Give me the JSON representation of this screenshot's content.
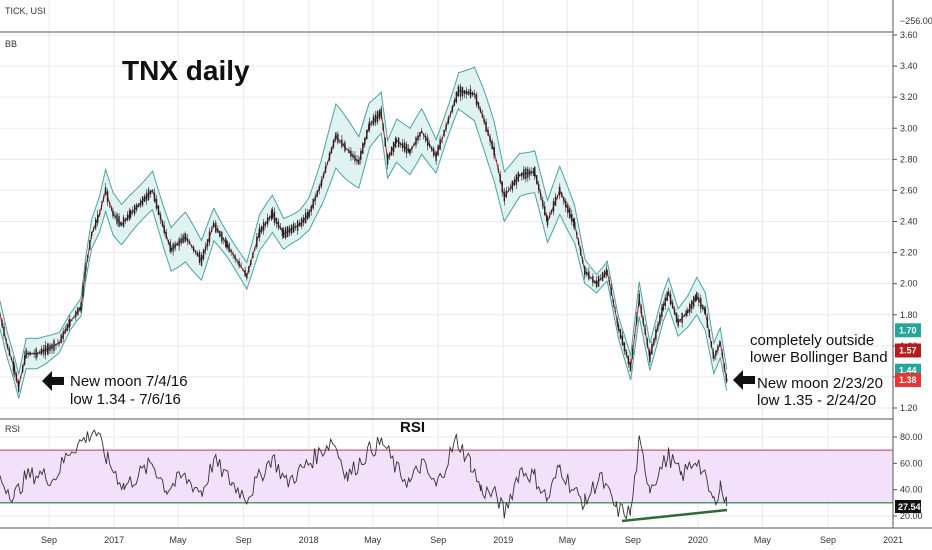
{
  "top_pane": {
    "symbol": "TICK, USI",
    "scale_label": "−256.00"
  },
  "price_pane": {
    "indicator_label": "BB",
    "title": "TNX daily",
    "annotations": {
      "left_line1": "New moon 7/4/16",
      "left_line2": "low 1.34 - 7/6/16",
      "right_line1": "New moon 2/23/20",
      "right_line2": "low 1.35 - 2/24/20",
      "band_line1": "completely outside",
      "band_line2": "lower Bollinger Band"
    },
    "badges": [
      {
        "value": "1.70",
        "color": "#26a69a"
      },
      {
        "value": "1.57",
        "color": "#b71c1c"
      },
      {
        "value": "1.44",
        "color": "#26a69a"
      },
      {
        "value": "1.38",
        "color": "#e53935"
      }
    ]
  },
  "rsi_pane": {
    "indicator_label": "RSI",
    "title": "RSI",
    "badge": "27.54"
  },
  "colors": {
    "band": "#4aa3a3",
    "band_fill": "#e0f2f1",
    "basis": "#c62828",
    "candle": "#222222",
    "rsi_fill": "#f3e0fb",
    "rsi_upper": "#c0395a",
    "rsi_lower": "#1f7a3a",
    "grid": "#eaeaea",
    "divergence": "#2f6b3a"
  },
  "chart_data": [
    {
      "type": "line",
      "title": "TNX daily",
      "series": [
        {
          "points": [
            [
              "2016-06-01",
              1.8
            ],
            [
              "2016-06-15",
              1.6
            ],
            [
              "2016-06-28",
              1.45
            ],
            [
              "2016-07-06",
              1.34
            ],
            [
              "2016-07-20",
              1.55
            ],
            [
              "2016-08-10",
              1.55
            ],
            [
              "2016-08-30",
              1.58
            ],
            [
              "2016-09-20",
              1.62
            ],
            [
              "2016-10-10",
              1.75
            ],
            [
              "2016-10-31",
              1.85
            ],
            [
              "2016-11-09",
              2.1
            ],
            [
              "2016-11-20",
              2.32
            ],
            [
              "2016-12-05",
              2.45
            ],
            [
              "2016-12-16",
              2.6
            ],
            [
              "2016-12-30",
              2.45
            ],
            [
              "2017-01-15",
              2.38
            ],
            [
              "2017-02-01",
              2.45
            ],
            [
              "2017-03-14",
              2.6
            ],
            [
              "2017-04-05",
              2.35
            ],
            [
              "2017-04-18",
              2.22
            ],
            [
              "2017-05-15",
              2.3
            ],
            [
              "2017-06-14",
              2.15
            ],
            [
              "2017-07-07",
              2.38
            ],
            [
              "2017-08-01",
              2.25
            ],
            [
              "2017-09-07",
              2.05
            ],
            [
              "2017-10-01",
              2.33
            ],
            [
              "2017-10-25",
              2.45
            ],
            [
              "2017-11-15",
              2.32
            ],
            [
              "2017-12-15",
              2.38
            ],
            [
              "2018-01-02",
              2.45
            ],
            [
              "2018-01-25",
              2.65
            ],
            [
              "2018-02-21",
              2.95
            ],
            [
              "2018-03-10",
              2.88
            ],
            [
              "2018-04-05",
              2.78
            ],
            [
              "2018-04-25",
              3.02
            ],
            [
              "2018-05-17",
              3.1
            ],
            [
              "2018-05-29",
              2.8
            ],
            [
              "2018-06-15",
              2.92
            ],
            [
              "2018-07-10",
              2.85
            ],
            [
              "2018-08-01",
              2.98
            ],
            [
              "2018-08-28",
              2.82
            ],
            [
              "2018-09-20",
              3.05
            ],
            [
              "2018-10-09",
              3.24
            ],
            [
              "2018-11-08",
              3.22
            ],
            [
              "2018-11-26",
              3.05
            ],
            [
              "2018-12-15",
              2.85
            ],
            [
              "2019-01-03",
              2.56
            ],
            [
              "2019-02-01",
              2.7
            ],
            [
              "2019-03-01",
              2.72
            ],
            [
              "2019-03-25",
              2.4
            ],
            [
              "2019-04-17",
              2.6
            ],
            [
              "2019-05-15",
              2.38
            ],
            [
              "2019-06-03",
              2.08
            ],
            [
              "2019-06-25",
              2.0
            ],
            [
              "2019-07-15",
              2.08
            ],
            [
              "2019-08-05",
              1.72
            ],
            [
              "2019-08-28",
              1.46
            ],
            [
              "2019-09-13",
              1.9
            ],
            [
              "2019-10-03",
              1.53
            ],
            [
              "2019-10-28",
              1.85
            ],
            [
              "2019-11-07",
              1.94
            ],
            [
              "2019-11-25",
              1.75
            ],
            [
              "2019-12-13",
              1.82
            ],
            [
              "2019-12-30",
              1.92
            ],
            [
              "2020-01-15",
              1.82
            ],
            [
              "2020-01-31",
              1.52
            ],
            [
              "2020-02-12",
              1.62
            ],
            [
              "2020-02-24",
              1.38
            ]
          ]
        }
      ],
      "bollinger": {
        "width_pct": 3.5
      },
      "y_ticks": [
        "1.20",
        "1.40",
        "1.60",
        "1.80",
        "2.00",
        "2.20",
        "2.40",
        "2.60",
        "2.80",
        "3.00",
        "3.20",
        "3.40",
        "3.60"
      ],
      "ylim": [
        1.2,
        3.6
      ]
    },
    {
      "type": "line",
      "title": "RSI",
      "series": [
        {
          "points": [
            [
              "2016-06-01",
              48
            ],
            [
              "2016-06-28",
              35
            ],
            [
              "2016-07-20",
              50
            ],
            [
              "2016-08-15",
              52
            ],
            [
              "2016-09-10",
              48
            ],
            [
              "2016-10-10",
              70
            ],
            [
              "2016-11-12",
              80
            ],
            [
              "2016-11-25",
              86
            ],
            [
              "2016-12-20",
              62
            ],
            [
              "2017-01-20",
              42
            ],
            [
              "2017-03-14",
              60
            ],
            [
              "2017-04-10",
              40
            ],
            [
              "2017-05-10",
              50
            ],
            [
              "2017-06-15",
              38
            ],
            [
              "2017-07-07",
              62
            ],
            [
              "2017-08-10",
              45
            ],
            [
              "2017-09-07",
              34
            ],
            [
              "2017-10-25",
              65
            ],
            [
              "2017-11-20",
              45
            ],
            [
              "2018-01-01",
              60
            ],
            [
              "2018-02-15",
              78
            ],
            [
              "2018-03-15",
              50
            ],
            [
              "2018-04-25",
              70
            ],
            [
              "2018-05-20",
              76
            ],
            [
              "2018-06-15",
              55
            ],
            [
              "2018-07-10",
              45
            ],
            [
              "2018-08-01",
              60
            ],
            [
              "2018-08-28",
              42
            ],
            [
              "2018-10-05",
              78
            ],
            [
              "2018-11-01",
              60
            ],
            [
              "2018-11-20",
              40
            ],
            [
              "2018-12-20",
              35
            ],
            [
              "2019-01-03",
              22
            ],
            [
              "2019-02-01",
              55
            ],
            [
              "2019-03-01",
              50
            ],
            [
              "2019-03-25",
              32
            ],
            [
              "2019-04-17",
              58
            ],
            [
              "2019-05-15",
              38
            ],
            [
              "2019-06-03",
              30
            ],
            [
              "2019-07-01",
              50
            ],
            [
              "2019-08-01",
              25
            ],
            [
              "2019-08-28",
              22
            ],
            [
              "2019-09-13",
              75
            ],
            [
              "2019-10-03",
              42
            ],
            [
              "2019-11-07",
              66
            ],
            [
              "2019-12-01",
              50
            ],
            [
              "2019-12-30",
              64
            ],
            [
              "2020-01-31",
              30
            ],
            [
              "2020-02-12",
              44
            ],
            [
              "2020-02-24",
              27.54
            ]
          ]
        }
      ],
      "levels": [
        70,
        30
      ],
      "y_ticks": [
        "20.00",
        "40.00",
        "60.00",
        "80.00"
      ],
      "ylim": [
        15,
        92
      ],
      "x_ticks": [
        {
          "label": "Sep",
          "date": "2016-09-01"
        },
        {
          "label": "2017",
          "date": "2017-01-01"
        },
        {
          "label": "May",
          "date": "2017-05-01"
        },
        {
          "label": "Sep",
          "date": "2017-09-01"
        },
        {
          "label": "2018",
          "date": "2018-01-01"
        },
        {
          "label": "May",
          "date": "2018-05-01"
        },
        {
          "label": "Sep",
          "date": "2018-09-01"
        },
        {
          "label": "2019",
          "date": "2019-01-01"
        },
        {
          "label": "May",
          "date": "2019-05-01"
        },
        {
          "label": "Sep",
          "date": "2019-09-01"
        },
        {
          "label": "2020",
          "date": "2020-01-01"
        },
        {
          "label": "May",
          "date": "2020-05-01"
        },
        {
          "label": "Sep",
          "date": "2020-09-01"
        },
        {
          "label": "2021",
          "date": "2021-01-01"
        }
      ]
    }
  ]
}
